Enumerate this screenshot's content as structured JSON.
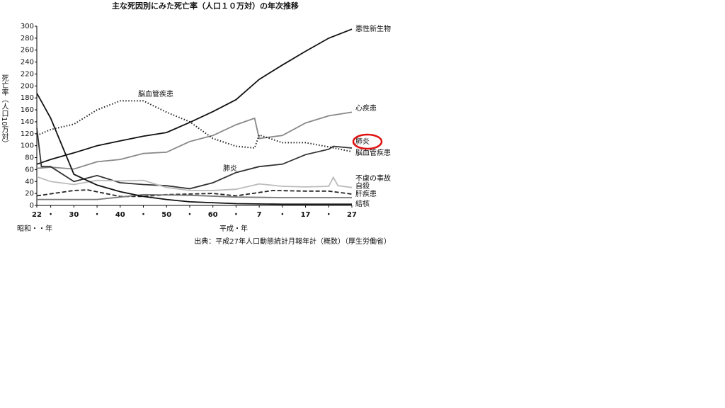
{
  "chart_data": {
    "type": "line",
    "title": "主な死因別にみた死亡率（人口１０万対）の年次推移",
    "y_label": "死亡率（人口10万対）",
    "x_label_left": "昭和・・年",
    "x_label_right": "平成・年",
    "source": "出典：平成27年人口動態統計月報年計（概数）（厚生労働省）",
    "annotations": [
      "脳血管疾患",
      "肺炎"
    ],
    "xlim": [
      1947,
      2015
    ],
    "xticks": [
      {
        "value": 1947,
        "label": "22"
      },
      {
        "value": 1950,
        "label": "・"
      },
      {
        "value": 1955,
        "label": "30"
      },
      {
        "value": 1960,
        "label": "・"
      },
      {
        "value": 1965,
        "label": "40"
      },
      {
        "value": 1970,
        "label": "・"
      },
      {
        "value": 1975,
        "label": "50"
      },
      {
        "value": 1980,
        "label": "・"
      },
      {
        "value": 1985,
        "label": "60"
      },
      {
        "value": 1990,
        "label": "・"
      },
      {
        "value": 1995,
        "label": "7"
      },
      {
        "value": 2000,
        "label": "・"
      },
      {
        "value": 2005,
        "label": "17"
      },
      {
        "value": 2010,
        "label": "・"
      },
      {
        "value": 2015,
        "label": "27"
      }
    ],
    "ylim": [
      0,
      300
    ],
    "yticks": [
      0,
      20,
      40,
      60,
      80,
      100,
      120,
      140,
      160,
      180,
      200,
      220,
      240,
      260,
      280,
      300
    ],
    "grid": false,
    "series": [
      {
        "name": "悪性新生物",
        "color": "#111111",
        "dash": "solid",
        "x": [
          1947,
          1950,
          1955,
          1960,
          1965,
          1970,
          1975,
          1980,
          1985,
          1990,
          1995,
          2000,
          2005,
          2010,
          2015
        ],
        "values": [
          69,
          77,
          88,
          100,
          108,
          116,
          122,
          139,
          157,
          177,
          211,
          235,
          258,
          280,
          295
        ]
      },
      {
        "name": "心疾患",
        "color": "#888888",
        "dash": "solid",
        "x": [
          1947,
          1950,
          1955,
          1960,
          1965,
          1970,
          1975,
          1980,
          1985,
          1990,
          1994,
          1995,
          2000,
          2005,
          2010,
          2015
        ],
        "values": [
          62,
          64,
          61,
          73,
          77,
          87,
          89,
          107,
          117,
          135,
          146,
          112,
          117,
          138,
          150,
          156
        ]
      },
      {
        "name": "肺炎",
        "color": "#333333",
        "dash": "solid",
        "highlight": true,
        "x": [
          1947,
          1948,
          1950,
          1955,
          1960,
          1965,
          1970,
          1975,
          1980,
          1985,
          1990,
          1995,
          2000,
          2005,
          2010,
          2011,
          2015
        ],
        "values": [
          130,
          65,
          65,
          40,
          50,
          38,
          35,
          33,
          28,
          38,
          55,
          65,
          69,
          85,
          94,
          99,
          96
        ]
      },
      {
        "name": "脳血管疾患",
        "color": "#222222",
        "dash": "dotted",
        "x": [
          1947,
          1950,
          1955,
          1960,
          1965,
          1970,
          1975,
          1980,
          1985,
          1990,
          1994,
          1995,
          2000,
          2005,
          2010,
          2015
        ],
        "values": [
          117,
          127,
          136,
          160,
          175,
          175,
          156,
          140,
          112,
          99,
          96,
          118,
          105,
          105,
          98,
          90
        ]
      },
      {
        "name": "不慮の事故",
        "color": "#bbbbbb",
        "dash": "solid",
        "x": [
          1947,
          1950,
          1955,
          1960,
          1965,
          1970,
          1975,
          1980,
          1985,
          1990,
          1995,
          2000,
          2005,
          2010,
          2011,
          2012,
          2015
        ],
        "values": [
          48,
          40,
          35,
          42,
          41,
          42,
          30,
          25,
          25,
          27,
          36,
          32,
          31,
          32,
          47,
          33,
          30
        ]
      },
      {
        "name": "自殺",
        "color": "#222222",
        "dash": "dashed",
        "x": [
          1947,
          1955,
          1958,
          1965,
          1970,
          1975,
          1985,
          1990,
          1998,
          2005,
          2010,
          2015
        ],
        "values": [
          16,
          25,
          26,
          15,
          15,
          18,
          20,
          16,
          25,
          24,
          24,
          19
        ]
      },
      {
        "name": "肝疾患",
        "color": "#777777",
        "dash": "solid",
        "x": [
          1947,
          1960,
          1970,
          1980,
          1990,
          2000,
          2015
        ],
        "values": [
          10,
          10,
          18,
          17,
          14,
          13,
          13
        ]
      },
      {
        "name": "結核",
        "color": "#111111",
        "dash": "solid",
        "x": [
          1947,
          1950,
          1955,
          1960,
          1965,
          1970,
          1975,
          1980,
          1990,
          2000,
          2015
        ],
        "values": [
          188,
          146,
          52,
          34,
          23,
          15,
          10,
          6,
          3,
          2,
          2
        ]
      }
    ]
  }
}
